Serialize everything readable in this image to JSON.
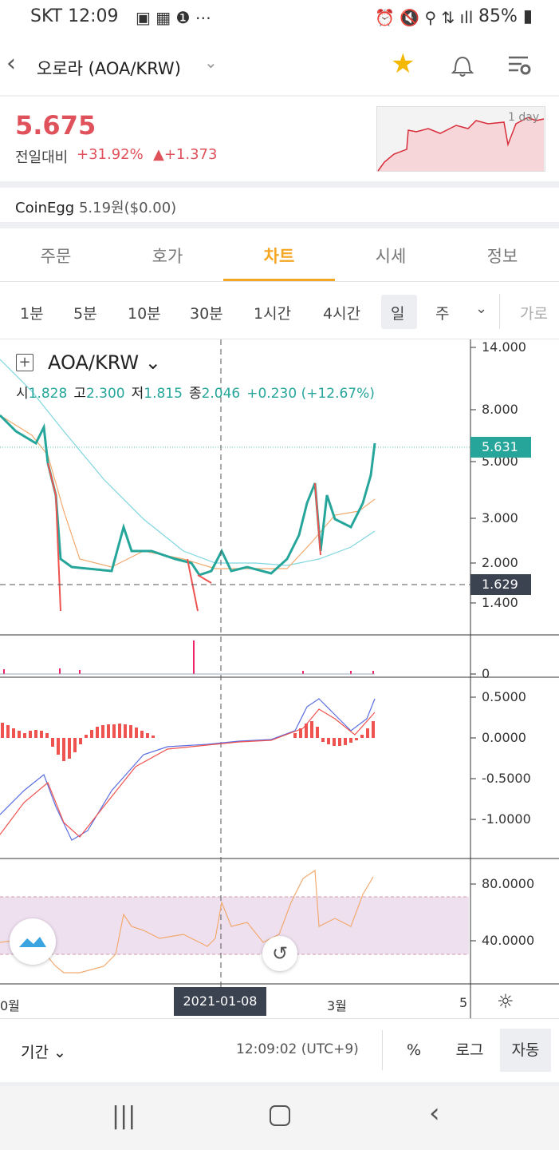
{
  "status_bar": {
    "carrier": "SKT",
    "time": "12:09",
    "battery": "85%"
  },
  "header": {
    "title": "오로라 (AOA/KRW)"
  },
  "price": {
    "current": "5.675",
    "change_label": "전일대비",
    "change_pct": "+31.92%",
    "change_abs": "+1.373",
    "sparkline_label": "1 day"
  },
  "exchange": {
    "name": "CoinEgg",
    "price": "5.19원($0.00)"
  },
  "tabs": [
    "주문",
    "호가",
    "차트",
    "시세",
    "정보"
  ],
  "intervals": [
    "1분",
    "5분",
    "10분",
    "30분",
    "1시간",
    "4시간",
    "일",
    "주",
    "가로"
  ],
  "chart": {
    "symbol": "AOA/KRW",
    "ohlc": [
      [
        "시",
        "1.828"
      ],
      [
        "고",
        "2.300"
      ],
      [
        "저",
        "1.815"
      ],
      [
        "종",
        "2.046"
      ]
    ],
    "change": "+0.230 (+12.67%)",
    "price_axis": [
      "14.000",
      "8.000",
      "5.000",
      "3.000",
      "2.000",
      "1.400"
    ],
    "last_price": "5.631",
    "crosshair_price": "1.629",
    "volume_axis": [
      "0"
    ],
    "macd_axis": [
      "0.5000",
      "0.0000",
      "-0.5000",
      "-1.0000"
    ],
    "rsi_axis": [
      "80.0000",
      "40.0000"
    ],
    "time_axis": [
      "0월",
      "3월",
      "5"
    ],
    "crosshair_date": "2021-01-08"
  },
  "footer": {
    "period": "기간",
    "time": "12:09:02 (UTC+9)",
    "buttons": [
      "%",
      "로그",
      "자동"
    ]
  }
}
